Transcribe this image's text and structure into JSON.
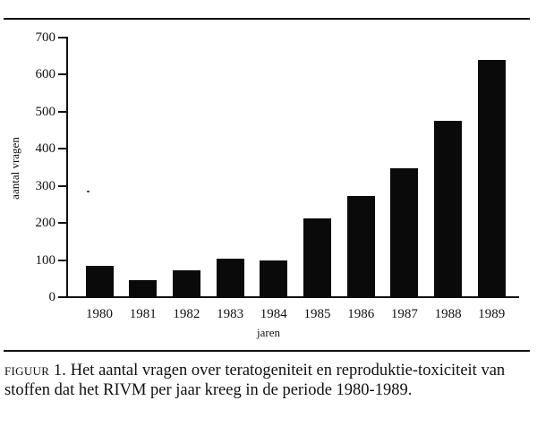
{
  "chart_data": {
    "type": "bar",
    "title": "",
    "xlabel": "jaren",
    "ylabel": "aantal vragen",
    "categories": [
      "1980",
      "1981",
      "1982",
      "1983",
      "1984",
      "1985",
      "1986",
      "1987",
      "1988",
      "1989"
    ],
    "values": [
      84,
      45,
      72,
      104,
      98,
      212,
      272,
      347,
      475,
      640
    ],
    "ylim": [
      0,
      700
    ],
    "yticks": [
      0,
      100,
      200,
      300,
      400,
      500,
      600,
      700
    ],
    "grid": false,
    "legend": null,
    "bar_color": "#0a0a0a"
  },
  "axis": {
    "yticks": [
      "0",
      "100",
      "200",
      "300",
      "400",
      "500",
      "600",
      "700"
    ],
    "xticks": [
      "1980",
      "1981",
      "1982",
      "1983",
      "1984",
      "1985",
      "1986",
      "1987",
      "1988",
      "1989"
    ],
    "xlabel": "jaren",
    "ylabel": "aantal vragen"
  },
  "caption": {
    "label": "figuur 1.",
    "text": " Het aantal vragen over teratogeniteit en reproduktie-toxiciteit van stoffen dat het RIVM per jaar kreeg in de periode 1980-1989."
  }
}
